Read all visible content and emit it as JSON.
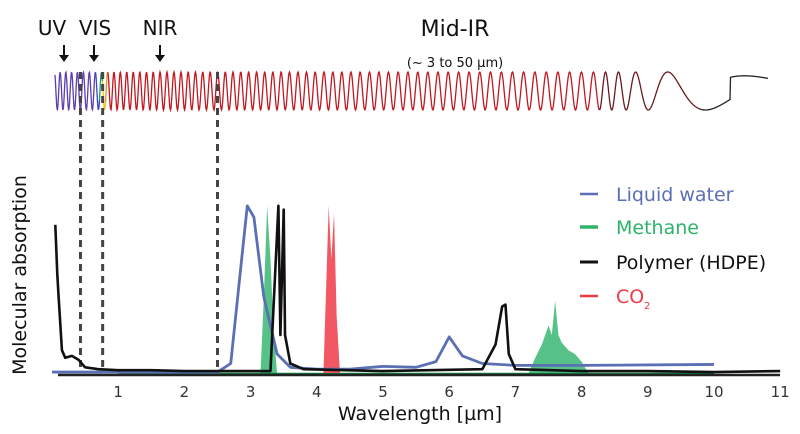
{
  "chart_data": {
    "type": "line",
    "title": "",
    "xlabel": "Wavelength [µm]",
    "ylabel": "Molecular absorption",
    "xlim": [
      0,
      11
    ],
    "ylim": [
      0,
      1
    ],
    "x_ticks": [
      "1",
      "2",
      "3",
      "4",
      "5",
      "6",
      "7",
      "8",
      "9",
      "10",
      "11"
    ],
    "region_labels": [
      {
        "label": "UV",
        "x": 0.15
      },
      {
        "label": "VIS",
        "x": 0.55
      },
      {
        "label": "NIR",
        "x": 1.6
      },
      {
        "label": "Mid-IR",
        "note": "(~ 3 to 50 µm)",
        "x": 6.4
      }
    ],
    "region_boundaries": [
      0.4,
      0.75,
      2.5
    ],
    "legend": {
      "position": "right",
      "entries": [
        {
          "label": "Liquid water",
          "color": "#5b6fb5"
        },
        {
          "label": "Methane",
          "color": "#2db36a"
        },
        {
          "label": "Polymer (HDPE)",
          "color": "#111111"
        },
        {
          "label": "CO",
          "subscript": "2",
          "color": "#ee3b48"
        }
      ]
    },
    "series": [
      {
        "name": "Liquid water",
        "color": "#5b6fb5",
        "x": [
          0,
          2.5,
          2.7,
          2.85,
          2.95,
          3.05,
          3.2,
          3.4,
          3.6,
          4.0,
          4.5,
          5.0,
          5.5,
          5.8,
          6.0,
          6.2,
          6.5,
          7.0,
          8.0,
          10.0
        ],
        "y": [
          0.005,
          0.005,
          0.05,
          0.55,
          0.88,
          0.82,
          0.4,
          0.1,
          0.03,
          0.02,
          0.02,
          0.035,
          0.03,
          0.06,
          0.19,
          0.09,
          0.05,
          0.04,
          0.04,
          0.045
        ]
      },
      {
        "name": "Methane",
        "color": "#2db36a",
        "x": [
          0,
          3.15,
          3.2,
          3.25,
          3.3,
          3.35,
          3.4,
          7.2,
          7.3,
          7.4,
          7.5,
          7.55,
          7.6,
          7.65,
          7.7,
          7.8,
          7.9,
          8.0,
          8.1,
          10.0
        ],
        "y": [
          0,
          0,
          0.4,
          0.88,
          0.6,
          0.2,
          0,
          0,
          0.08,
          0.15,
          0.25,
          0.2,
          0.38,
          0.2,
          0.16,
          0.12,
          0.1,
          0.06,
          0,
          0
        ]
      },
      {
        "name": "Polymer (HDPE)",
        "color": "#111111",
        "x": [
          0.05,
          0.08,
          0.1,
          0.15,
          0.2,
          0.3,
          0.4,
          0.5,
          0.7,
          1.0,
          1.5,
          2.0,
          2.5,
          3.3,
          3.42,
          3.45,
          3.5,
          3.52,
          3.6,
          3.8,
          5.0,
          6.5,
          6.7,
          6.8,
          6.85,
          6.9,
          7.0,
          8.0,
          9.0,
          10.0,
          11.0
        ],
        "y": [
          0.78,
          0.52,
          0.4,
          0.12,
          0.08,
          0.09,
          0.07,
          0.03,
          0.02,
          0.015,
          0.015,
          0.01,
          0.01,
          0.01,
          0.88,
          0.2,
          0.86,
          0.2,
          0.05,
          0.02,
          0.01,
          0.02,
          0.15,
          0.35,
          0.36,
          0.1,
          0.02,
          0.01,
          0.01,
          0.005,
          0.01
        ]
      },
      {
        "name": "CO2",
        "color": "#ee3b48",
        "x": [
          4.1,
          4.18,
          4.22,
          4.26,
          4.3,
          4.35
        ],
        "y": [
          0,
          0.88,
          0.6,
          0.84,
          0.3,
          0
        ]
      }
    ]
  }
}
